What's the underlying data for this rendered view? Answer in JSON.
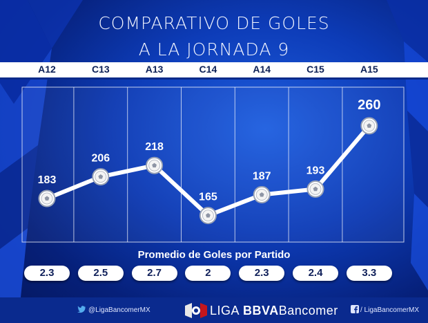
{
  "title_line1": "COMPARATIVO DE GOLES",
  "title_line2": "A LA JORNADA 9",
  "subtitle": "Promedio de Goles por Partido",
  "chart_data": {
    "type": "line",
    "title": "COMPARATIVO DE GOLES A LA JORNADA 9",
    "categories": [
      "A12",
      "C13",
      "A13",
      "C14",
      "A14",
      "C15",
      "A15"
    ],
    "values": [
      183,
      206,
      218,
      165,
      187,
      193,
      260
    ],
    "data_labels": [
      "183",
      "206",
      "218",
      "165",
      "187",
      "193",
      "260"
    ],
    "averages": [
      "2.3",
      "2.5",
      "2.7",
      "2",
      "2.3",
      "2.4",
      "3.3"
    ],
    "grid": true
  },
  "footer": {
    "twitter": "@LigaBancomerMX",
    "facebook": "/ LigaBancomerMX",
    "brand_liga": "LIGA",
    "brand_bbva": "BBVA",
    "brand_bancomer": "Bancomer"
  },
  "icons": [
    "soccer-ball-icon",
    "twitter-icon",
    "facebook-icon",
    "liga-logo-icon"
  ],
  "colors": {
    "background": "#0d3cb8",
    "line": "#ffffff",
    "text": "#ffffff",
    "dark_text": "#0b1f55"
  }
}
